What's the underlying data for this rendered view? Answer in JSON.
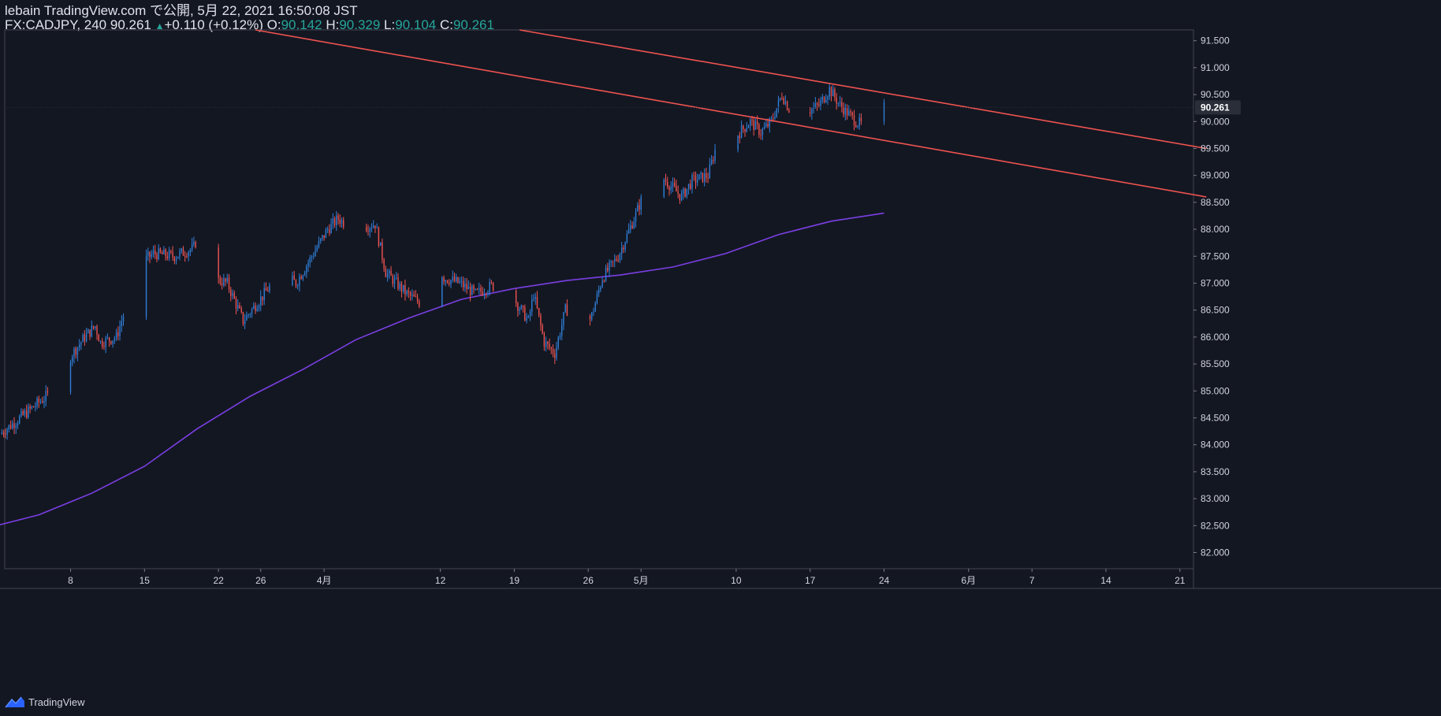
{
  "header": {
    "title": "lebain TradingView.com で公開, 5月 22, 2021 16:50:08 JST",
    "symbol": "FX:CADJPY, 240",
    "last": "90.261",
    "change": "+0.110 (+0.12%)",
    "o_label": "O:",
    "o_value": "90.142",
    "h_label": "H:",
    "h_value": "90.329",
    "l_label": "L:",
    "l_value": "90.104",
    "c_label": "C:",
    "c_value": "90.261"
  },
  "footer": {
    "brand": "TradingView",
    "logo_icon": "tradingview-logo-icon"
  },
  "colors": {
    "background": "#131722",
    "up": "#2f7fd9",
    "down": "#ef5350",
    "ma": "#7b3fe4",
    "trendline": "#ef5350",
    "axis_text": "#d1d4dc",
    "grid": "#2a2e39"
  },
  "chart_data": {
    "type": "candlestick",
    "symbol": "FX:CADJPY",
    "timeframe": "240",
    "y_axis": {
      "range": [
        81.7,
        91.7
      ],
      "ticks": [
        "82.000",
        "82.500",
        "83.000",
        "83.500",
        "84.000",
        "84.500",
        "85.000",
        "85.500",
        "86.000",
        "86.500",
        "87.000",
        "87.500",
        "88.000",
        "88.500",
        "89.000",
        "89.500",
        "90.000",
        "90.500",
        "91.000",
        "91.500"
      ]
    },
    "x_axis": {
      "labels": [
        {
          "label": "8",
          "day": 8
        },
        {
          "label": "15",
          "day": 15
        },
        {
          "label": "22",
          "day": 22
        },
        {
          "label": "26",
          "day": 26
        },
        {
          "label": "4月",
          "day": 32
        },
        {
          "label": "12",
          "day": 43
        },
        {
          "label": "19",
          "day": 50
        },
        {
          "label": "26",
          "day": 57
        },
        {
          "label": "5月",
          "day": 62
        },
        {
          "label": "10",
          "day": 71
        },
        {
          "label": "17",
          "day": 78
        },
        {
          "label": "24",
          "day": 85
        },
        {
          "label": "6月",
          "day": 93
        },
        {
          "label": "7",
          "day": 99
        },
        {
          "label": "14",
          "day": 106
        },
        {
          "label": "21",
          "day": 113
        }
      ]
    },
    "last_price_label": "90.261",
    "last_price": 90.261,
    "price_path": [
      {
        "day": 1.5,
        "price": 84.2
      },
      {
        "day": 4.0,
        "price": 84.6
      },
      {
        "day": 6.5,
        "price": 85.0
      },
      {
        "day": 8.0,
        "price": 85.6
      },
      {
        "day": 9.5,
        "price": 86.0
      },
      {
        "day": 10.5,
        "price": 86.2
      },
      {
        "day": 11.0,
        "price": 85.9
      },
      {
        "day": 12.5,
        "price": 86.0
      },
      {
        "day": 13.5,
        "price": 86.6
      },
      {
        "day": 15.0,
        "price": 87.4
      },
      {
        "day": 16.0,
        "price": 87.55
      },
      {
        "day": 18.0,
        "price": 87.5
      },
      {
        "day": 19.8,
        "price": 87.65
      },
      {
        "day": 20.5,
        "price": 88.0
      },
      {
        "day": 21.5,
        "price": 87.1
      },
      {
        "day": 23.0,
        "price": 87.0
      },
      {
        "day": 24.5,
        "price": 86.3
      },
      {
        "day": 26.5,
        "price": 86.8
      },
      {
        "day": 28.0,
        "price": 87.2
      },
      {
        "day": 29.5,
        "price": 87.0
      },
      {
        "day": 31.0,
        "price": 87.5
      },
      {
        "day": 32.5,
        "price": 88.0
      },
      {
        "day": 33.5,
        "price": 88.2
      },
      {
        "day": 35.0,
        "price": 88.0
      },
      {
        "day": 37.0,
        "price": 88.1
      },
      {
        "day": 38.0,
        "price": 87.2
      },
      {
        "day": 40.0,
        "price": 86.8
      },
      {
        "day": 41.5,
        "price": 86.6
      },
      {
        "day": 42.5,
        "price": 87.5
      },
      {
        "day": 43.5,
        "price": 87.1
      },
      {
        "day": 45.0,
        "price": 87.0
      },
      {
        "day": 46.5,
        "price": 86.8
      },
      {
        "day": 48.0,
        "price": 86.95
      },
      {
        "day": 49.5,
        "price": 86.9
      },
      {
        "day": 50.5,
        "price": 86.6
      },
      {
        "day": 51.5,
        "price": 86.3
      },
      {
        "day": 52.0,
        "price": 86.8
      },
      {
        "day": 53.0,
        "price": 85.9
      },
      {
        "day": 54.0,
        "price": 85.7
      },
      {
        "day": 55.0,
        "price": 86.5
      },
      {
        "day": 56.0,
        "price": 86.5
      },
      {
        "day": 57.0,
        "price": 86.2
      },
      {
        "day": 57.5,
        "price": 86.4
      },
      {
        "day": 58.5,
        "price": 87.1
      },
      {
        "day": 60.0,
        "price": 87.5
      },
      {
        "day": 61.5,
        "price": 88.2
      },
      {
        "day": 62.5,
        "price": 88.7
      },
      {
        "day": 64.0,
        "price": 89.0
      },
      {
        "day": 65.0,
        "price": 88.8
      },
      {
        "day": 66.0,
        "price": 88.6
      },
      {
        "day": 67.0,
        "price": 88.9
      },
      {
        "day": 68.5,
        "price": 89.0
      },
      {
        "day": 69.5,
        "price": 89.7
      },
      {
        "day": 71.0,
        "price": 89.7
      },
      {
        "day": 72.5,
        "price": 90.0
      },
      {
        "day": 73.5,
        "price": 89.8
      },
      {
        "day": 74.5,
        "price": 90.0
      },
      {
        "day": 75.5,
        "price": 90.5
      },
      {
        "day": 76.5,
        "price": 90.1
      },
      {
        "day": 78.0,
        "price": 90.2
      },
      {
        "day": 79.0,
        "price": 90.3
      },
      {
        "day": 80.0,
        "price": 90.6
      },
      {
        "day": 81.0,
        "price": 90.3
      },
      {
        "day": 82.5,
        "price": 90.0
      },
      {
        "day": 83.5,
        "price": 89.9
      },
      {
        "day": 84.5,
        "price": 90.1
      },
      {
        "day": 85.0,
        "price": 90.26
      }
    ],
    "moving_average": [
      {
        "day": 1,
        "price": 82.5
      },
      {
        "day": 5,
        "price": 82.7
      },
      {
        "day": 10,
        "price": 83.1
      },
      {
        "day": 15,
        "price": 83.6
      },
      {
        "day": 20,
        "price": 84.3
      },
      {
        "day": 25,
        "price": 84.9
      },
      {
        "day": 30,
        "price": 85.4
      },
      {
        "day": 35,
        "price": 85.95
      },
      {
        "day": 40,
        "price": 86.35
      },
      {
        "day": 45,
        "price": 86.7
      },
      {
        "day": 50,
        "price": 86.9
      },
      {
        "day": 55,
        "price": 87.05
      },
      {
        "day": 60,
        "price": 87.15
      },
      {
        "day": 65,
        "price": 87.3
      },
      {
        "day": 70,
        "price": 87.55
      },
      {
        "day": 75,
        "price": 87.9
      },
      {
        "day": 80,
        "price": 88.15
      },
      {
        "day": 85,
        "price": 88.3
      }
    ],
    "trendlines": [
      {
        "name": "upper-channel",
        "start": {
          "day": 50.5,
          "price": 91.7
        },
        "end": {
          "day": 115.5,
          "price": 89.5
        }
      },
      {
        "name": "lower-channel",
        "start": {
          "day": 25.5,
          "price": 91.7
        },
        "end": {
          "day": 115.5,
          "price": 88.6
        }
      }
    ],
    "grid": false,
    "legend": "none"
  }
}
